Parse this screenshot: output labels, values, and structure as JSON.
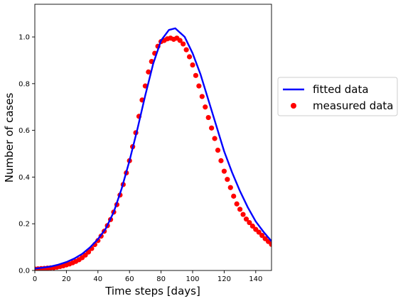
{
  "chart_data": {
    "type": "line",
    "title": "",
    "xlabel": "Time steps [days]",
    "ylabel": "Number of cases",
    "xlim": [
      0,
      150
    ],
    "ylim": [
      0,
      1.14
    ],
    "xticks": [
      0,
      20,
      40,
      60,
      80,
      100,
      120,
      140
    ],
    "yticks": [
      0.0,
      0.2,
      0.4,
      0.6,
      0.8,
      1.0
    ],
    "xtick_labels": [
      "0",
      "20",
      "40",
      "60",
      "80",
      "100",
      "120",
      "140"
    ],
    "ytick_labels": [
      "0.0",
      "0.2",
      "0.4",
      "0.6",
      "0.8",
      "1.0"
    ],
    "grid": false,
    "legend_position": "outside-right",
    "series": [
      {
        "name": "fitted data",
        "kind": "line",
        "color": "#0000ff",
        "x": [
          0,
          5,
          10,
          15,
          20,
          25,
          30,
          35,
          40,
          45,
          50,
          55,
          60,
          65,
          70,
          75,
          80,
          85,
          89,
          95,
          100,
          105,
          110,
          115,
          120,
          125,
          130,
          135,
          140,
          145,
          150
        ],
        "y": [
          0.008,
          0.012,
          0.017,
          0.025,
          0.036,
          0.051,
          0.071,
          0.099,
          0.134,
          0.18,
          0.25,
          0.35,
          0.47,
          0.605,
          0.75,
          0.885,
          0.985,
          1.03,
          1.037,
          1.0,
          0.93,
          0.84,
          0.73,
          0.62,
          0.51,
          0.42,
          0.34,
          0.27,
          0.21,
          0.165,
          0.125
        ]
      },
      {
        "name": "measured data",
        "kind": "scatter",
        "color": "#ff0000",
        "x": [
          0,
          2,
          4,
          6,
          8,
          10,
          12,
          14,
          16,
          18,
          20,
          22,
          24,
          26,
          28,
          30,
          32,
          34,
          36,
          38,
          40,
          42,
          44,
          46,
          48,
          50,
          52,
          54,
          56,
          58,
          60,
          62,
          64,
          66,
          68,
          70,
          72,
          74,
          76,
          78,
          80,
          82,
          84,
          86,
          88,
          90,
          92,
          94,
          96,
          98,
          100,
          102,
          104,
          106,
          108,
          110,
          112,
          114,
          116,
          118,
          120,
          122,
          124,
          126,
          128,
          130,
          132,
          134,
          136,
          138,
          140,
          142,
          144,
          146,
          148,
          150
        ],
        "y": [
          0.006,
          0.007,
          0.008,
          0.009,
          0.01,
          0.011,
          0.012,
          0.014,
          0.017,
          0.02,
          0.024,
          0.028,
          0.033,
          0.039,
          0.046,
          0.055,
          0.066,
          0.079,
          0.094,
          0.111,
          0.128,
          0.147,
          0.168,
          0.192,
          0.218,
          0.25,
          0.282,
          0.323,
          0.368,
          0.418,
          0.47,
          0.53,
          0.59,
          0.66,
          0.73,
          0.79,
          0.85,
          0.895,
          0.93,
          0.96,
          0.98,
          0.985,
          0.992,
          0.995,
          0.99,
          0.995,
          0.985,
          0.97,
          0.945,
          0.915,
          0.88,
          0.835,
          0.79,
          0.745,
          0.7,
          0.655,
          0.61,
          0.565,
          0.515,
          0.47,
          0.425,
          0.39,
          0.355,
          0.318,
          0.285,
          0.262,
          0.24,
          0.22,
          0.205,
          0.19,
          0.176,
          0.164,
          0.15,
          0.136,
          0.124,
          0.112
        ]
      }
    ]
  }
}
